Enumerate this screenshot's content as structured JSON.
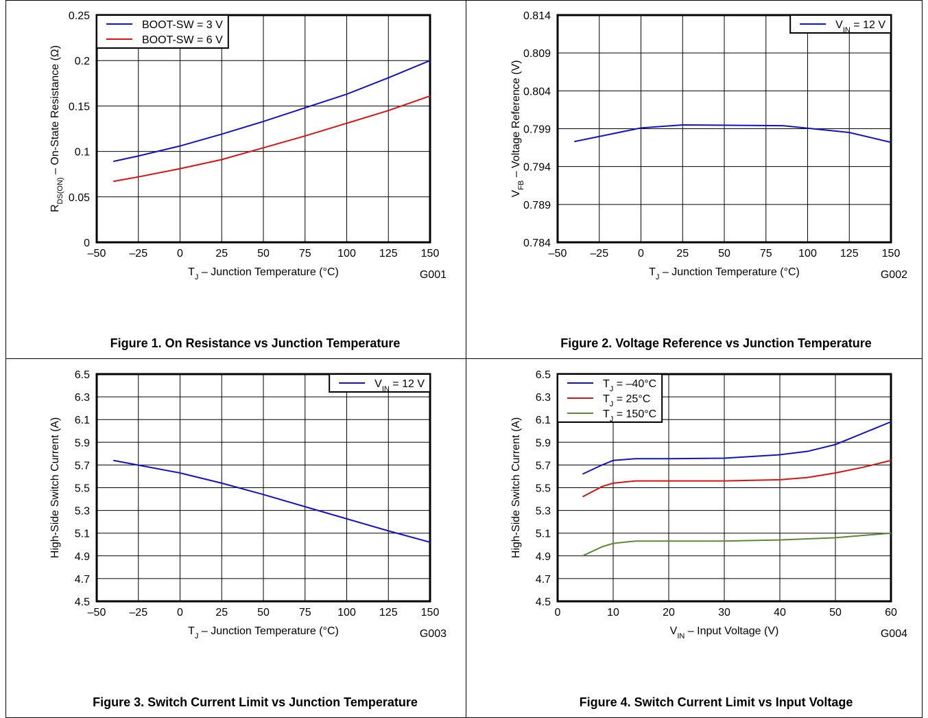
{
  "chart_data": [
    {
      "type": "line",
      "caption": "Figure 1. On Resistance vs Junction Temperature",
      "figure_id": "G001",
      "xlabel": [
        "T",
        "J",
        " – Junction Temperature (°C)"
      ],
      "ylabel": [
        "R",
        "DS(ON)",
        " – On-State Resistance (Ω)"
      ],
      "legend": "top-left",
      "grid": true,
      "x": [
        -40,
        -25,
        0,
        25,
        50,
        75,
        100,
        125,
        150
      ],
      "series": [
        {
          "name": [
            "BOOT-SW = 3 V"
          ],
          "color": "#1010d0",
          "values": [
            0.089,
            0.095,
            0.106,
            0.119,
            0.133,
            0.148,
            0.163,
            0.181,
            0.2
          ]
        },
        {
          "name": [
            "BOOT-SW = 6 V"
          ],
          "color": "#e01010",
          "values": [
            0.067,
            0.072,
            0.081,
            0.091,
            0.104,
            0.117,
            0.131,
            0.145,
            0.161
          ]
        }
      ],
      "xlim": [
        -50,
        150
      ],
      "xticks": [
        {
          "value": -50,
          "label": "–50"
        },
        {
          "value": -25,
          "label": "–25"
        },
        0,
        25,
        50,
        75,
        100,
        125,
        150
      ],
      "ylim": [
        0,
        0.25
      ],
      "yticks": [
        0,
        0.05,
        0.1,
        0.15,
        0.2,
        0.25
      ]
    },
    {
      "type": "line",
      "caption": "Figure 2. Voltage Reference vs Junction Temperature",
      "figure_id": "G002",
      "xlabel": [
        "T",
        "J",
        " – Junction Temperature (°C)"
      ],
      "ylabel": [
        "V",
        "FB",
        " – Voltage Reference (V)"
      ],
      "legend": "top-right",
      "grid": true,
      "x": [
        -40,
        0,
        25,
        85,
        125,
        150
      ],
      "series": [
        {
          "name": [
            "V",
            "IN",
            " = 12 V"
          ],
          "color": "#1010d0",
          "values": [
            0.7973,
            0.7991,
            0.7995,
            0.7994,
            0.7985,
            0.7972
          ]
        }
      ],
      "xlim": [
        -50,
        150
      ],
      "xticks": [
        {
          "value": -50,
          "label": "–50"
        },
        {
          "value": -25,
          "label": "–25"
        },
        0,
        25,
        50,
        75,
        100,
        125,
        150
      ],
      "ylim": [
        0.784,
        0.814
      ],
      "yticks": [
        0.784,
        0.789,
        0.794,
        0.799,
        0.804,
        0.809,
        0.814
      ]
    },
    {
      "type": "line",
      "caption": "Figure 3. Switch Current Limit vs Junction Temperature",
      "figure_id": "G003",
      "xlabel": [
        "T",
        "J",
        " – Junction Temperature (°C)"
      ],
      "ylabel": [
        "High-Side Switch Current  (A)"
      ],
      "legend": "top-right",
      "grid": true,
      "x": [
        -40,
        0,
        25,
        50,
        85,
        125,
        150
      ],
      "series": [
        {
          "name": [
            "V",
            "IN",
            " = 12 V"
          ],
          "color": "#1010d0",
          "values": [
            5.74,
            5.63,
            5.54,
            5.44,
            5.29,
            5.12,
            5.02
          ]
        }
      ],
      "xlim": [
        -50,
        150
      ],
      "xticks": [
        {
          "value": -50,
          "label": "–50"
        },
        {
          "value": -25,
          "label": "–25"
        },
        0,
        25,
        50,
        75,
        100,
        125,
        150
      ],
      "ylim": [
        4.5,
        6.5
      ],
      "yticks": [
        4.5,
        4.7,
        4.9,
        5.1,
        5.3,
        5.5,
        5.7,
        5.9,
        6.1,
        6.3,
        6.5
      ]
    },
    {
      "type": "line",
      "caption": "Figure 4. Switch Current Limit vs Input Voltage",
      "figure_id": "G004",
      "xlabel": [
        "V",
        "IN",
        " – Input Voltage (V)"
      ],
      "ylabel": [
        "High-Side Switch Current  (A)"
      ],
      "legend": "top-left",
      "grid": true,
      "x": [
        4.5,
        8,
        10,
        14,
        20,
        30,
        40,
        45,
        50,
        55,
        60
      ],
      "series": [
        {
          "name": [
            "T",
            "J",
            " = –40°C"
          ],
          "color": "#1010d0",
          "values": [
            5.62,
            5.7,
            5.74,
            5.755,
            5.755,
            5.76,
            5.79,
            5.82,
            5.88,
            5.98,
            6.08
          ]
        },
        {
          "name": [
            "T",
            "J",
            " = 25°C"
          ],
          "color": "#e01010",
          "values": [
            5.42,
            5.51,
            5.54,
            5.56,
            5.56,
            5.56,
            5.57,
            5.59,
            5.63,
            5.68,
            5.74
          ]
        },
        {
          "name": [
            "T",
            "J",
            " = 150°C"
          ],
          "color": "#5a8a30",
          "values": [
            4.9,
            4.98,
            5.01,
            5.03,
            5.03,
            5.03,
            5.04,
            5.05,
            5.06,
            5.08,
            5.1
          ]
        }
      ],
      "xlim": [
        0,
        60
      ],
      "xticks": [
        0,
        10,
        20,
        30,
        40,
        50,
        60
      ],
      "ylim": [
        4.5,
        6.5
      ],
      "yticks": [
        4.5,
        4.7,
        4.9,
        5.1,
        5.3,
        5.5,
        5.7,
        5.9,
        6.1,
        6.3,
        6.5
      ]
    }
  ]
}
